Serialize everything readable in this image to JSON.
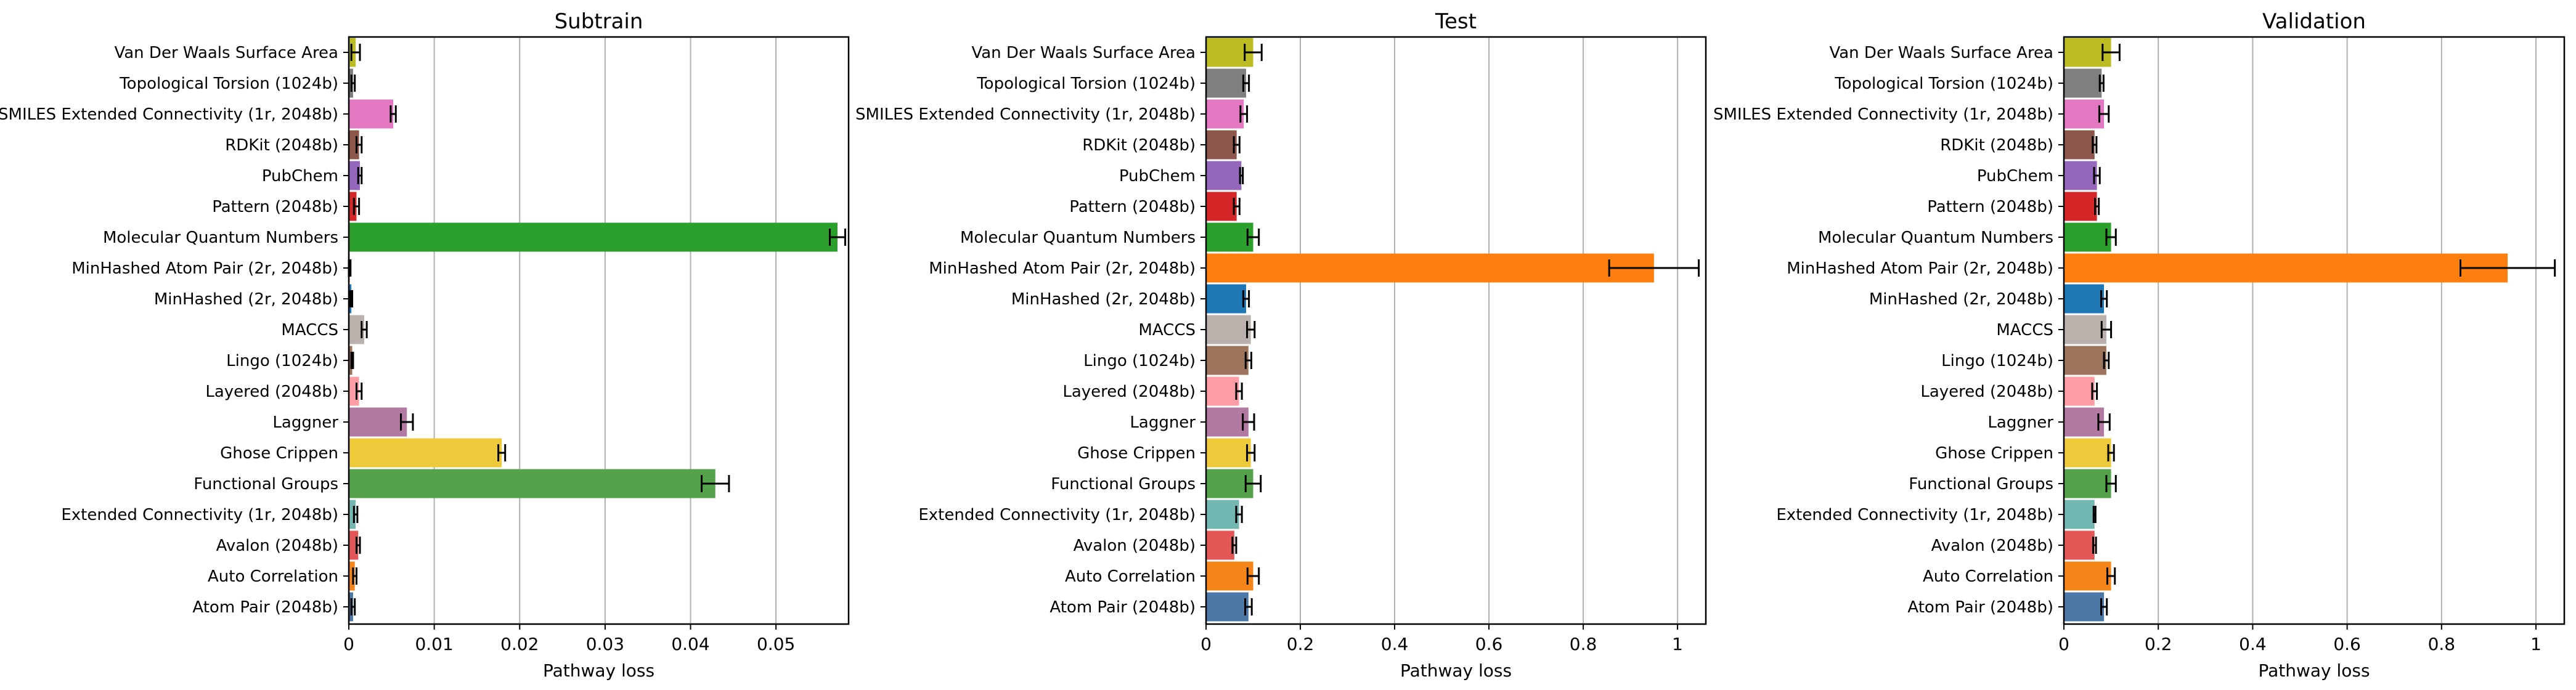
{
  "figure": {
    "categories": [
      "Van Der Waals Surface Area",
      "Topological Torsion (1024b)",
      "SMILES Extended Connectivity (1r, 2048b)",
      "RDKit (2048b)",
      "PubChem",
      "Pattern (2048b)",
      "Molecular Quantum Numbers",
      "MinHashed Atom Pair (2r, 2048b)",
      "MinHashed (2r, 2048b)",
      "MACCS",
      "Lingo (1024b)",
      "Layered (2048b)",
      "Laggner",
      "Ghose Crippen",
      "Functional Groups",
      "Extended Connectivity (1r, 2048b)",
      "Avalon (2048b)",
      "Auto Correlation",
      "Atom Pair (2048b)"
    ],
    "colors": [
      "#bcbd22",
      "#7f7f7f",
      "#e377c2",
      "#8c564b",
      "#9467bd",
      "#d62728",
      "#2ca02c",
      "#ff7f0e",
      "#1f77b4",
      "#bab0ac",
      "#9d755d",
      "#ff9da6",
      "#b279a2",
      "#eeca3b",
      "#54a24b",
      "#72b7b2",
      "#e45756",
      "#f58518",
      "#4c78a8"
    ]
  },
  "chart_data": [
    {
      "type": "bar",
      "orientation": "horizontal",
      "title": "Subtrain",
      "xlabel": "Pathway loss",
      "xlim": [
        0,
        0.0585
      ],
      "xticks": [
        0,
        0.01,
        0.02,
        0.03,
        0.04,
        0.05
      ],
      "xtick_labels": [
        "0",
        "0.01",
        "0.02",
        "0.03",
        "0.04",
        "0.05"
      ],
      "grid": "vertical",
      "values": [
        0.0008,
        0.0005,
        0.0052,
        0.0012,
        0.0013,
        0.0009,
        0.0572,
        0.0001,
        0.0003,
        0.0018,
        0.0004,
        0.0012,
        0.0068,
        0.0179,
        0.0429,
        0.0008,
        0.0011,
        0.0007,
        0.0005
      ],
      "errors": [
        0.0005,
        0.0002,
        0.0003,
        0.0003,
        0.0002,
        0.0003,
        0.0009,
        0.0001,
        0.0001,
        0.0003,
        0.0001,
        0.0003,
        0.0007,
        0.0004,
        0.0016,
        0.0002,
        0.0002,
        0.0002,
        0.0002
      ]
    },
    {
      "type": "bar",
      "orientation": "horizontal",
      "title": "Test",
      "xlabel": "Pathway loss",
      "xlim": [
        0,
        1.06
      ],
      "xticks": [
        0,
        0.2,
        0.4,
        0.6,
        0.8,
        1.0
      ],
      "xtick_labels": [
        "0",
        "0.2",
        "0.4",
        "0.6",
        "0.8",
        "1"
      ],
      "grid": "vertical",
      "values": [
        0.1,
        0.085,
        0.08,
        0.065,
        0.075,
        0.065,
        0.1,
        0.95,
        0.085,
        0.095,
        0.09,
        0.07,
        0.09,
        0.095,
        0.1,
        0.07,
        0.06,
        0.1,
        0.09
      ],
      "errors": [
        0.018,
        0.006,
        0.007,
        0.006,
        0.003,
        0.006,
        0.012,
        0.095,
        0.006,
        0.008,
        0.006,
        0.006,
        0.012,
        0.008,
        0.016,
        0.006,
        0.004,
        0.012,
        0.007
      ]
    },
    {
      "type": "bar",
      "orientation": "horizontal",
      "title": "Validation",
      "xlabel": "Pathway loss",
      "xlim": [
        0,
        1.06
      ],
      "xticks": [
        0,
        0.2,
        0.4,
        0.6,
        0.8,
        1.0
      ],
      "xtick_labels": [
        "0",
        "0.2",
        "0.4",
        "0.6",
        "0.8",
        "1"
      ],
      "grid": "vertical",
      "values": [
        0.1,
        0.08,
        0.085,
        0.065,
        0.07,
        0.07,
        0.1,
        0.94,
        0.085,
        0.09,
        0.09,
        0.065,
        0.085,
        0.1,
        0.1,
        0.065,
        0.065,
        0.1,
        0.085
      ],
      "errors": [
        0.018,
        0.004,
        0.01,
        0.004,
        0.006,
        0.004,
        0.01,
        0.1,
        0.006,
        0.01,
        0.005,
        0.005,
        0.012,
        0.006,
        0.01,
        0.002,
        0.003,
        0.008,
        0.006
      ]
    }
  ]
}
